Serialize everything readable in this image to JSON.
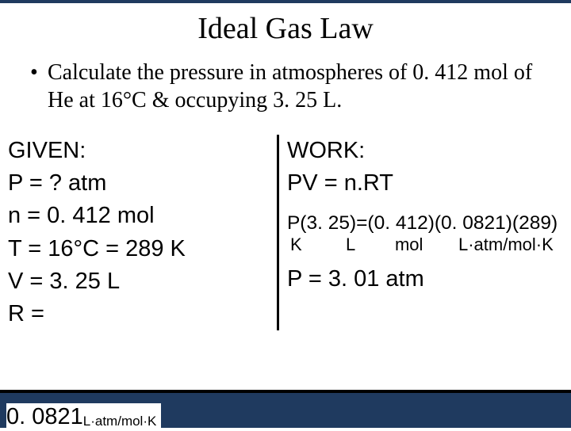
{
  "title": "Ideal Gas Law",
  "bullet": "Calculate the pressure in atmospheres of 0. 412 mol of He at 16°C & occupying 3. 25 L.",
  "given": {
    "heading": "GIVEN:",
    "p": "P = ? atm",
    "n": "n = 0. 412 mol",
    "t": "T = 16°C = 289 K",
    "v": "V = 3. 25 L",
    "r_label": "R =",
    "r_value": "0. 0821",
    "r_units": "L·atm/mol·K"
  },
  "work": {
    "heading": "WORK:",
    "eq": "PV = n.RT",
    "sub": "P(3. 25)=(0. 412)(0. 0821)(289)",
    "u_k": "K",
    "u_l": "L",
    "u_mol": "mol",
    "u_r": "L·atm/mol·K",
    "ans": "P = 3. 01 atm"
  }
}
